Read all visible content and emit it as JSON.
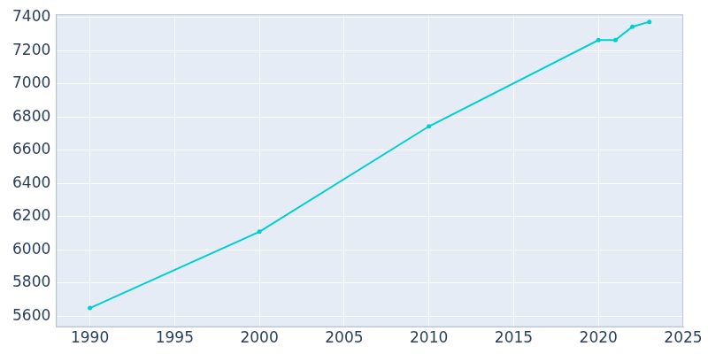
{
  "chart_data": {
    "type": "line",
    "x": [
      1990,
      2000,
      2010,
      2020,
      2021,
      2022,
      2023
    ],
    "values": [
      5650,
      6110,
      6745,
      7265,
      7265,
      7345,
      7375
    ],
    "color": "#00ced1",
    "marker": "circle",
    "xlim": [
      1988,
      2025
    ],
    "xticks": [
      1990,
      1995,
      2000,
      2005,
      2010,
      2015,
      2020,
      2025
    ],
    "ylim": [
      5535,
      7420
    ],
    "yticks": [
      5600,
      5800,
      6000,
      6200,
      6400,
      6600,
      6800,
      7000,
      7200,
      7400
    ],
    "grid": true
  }
}
